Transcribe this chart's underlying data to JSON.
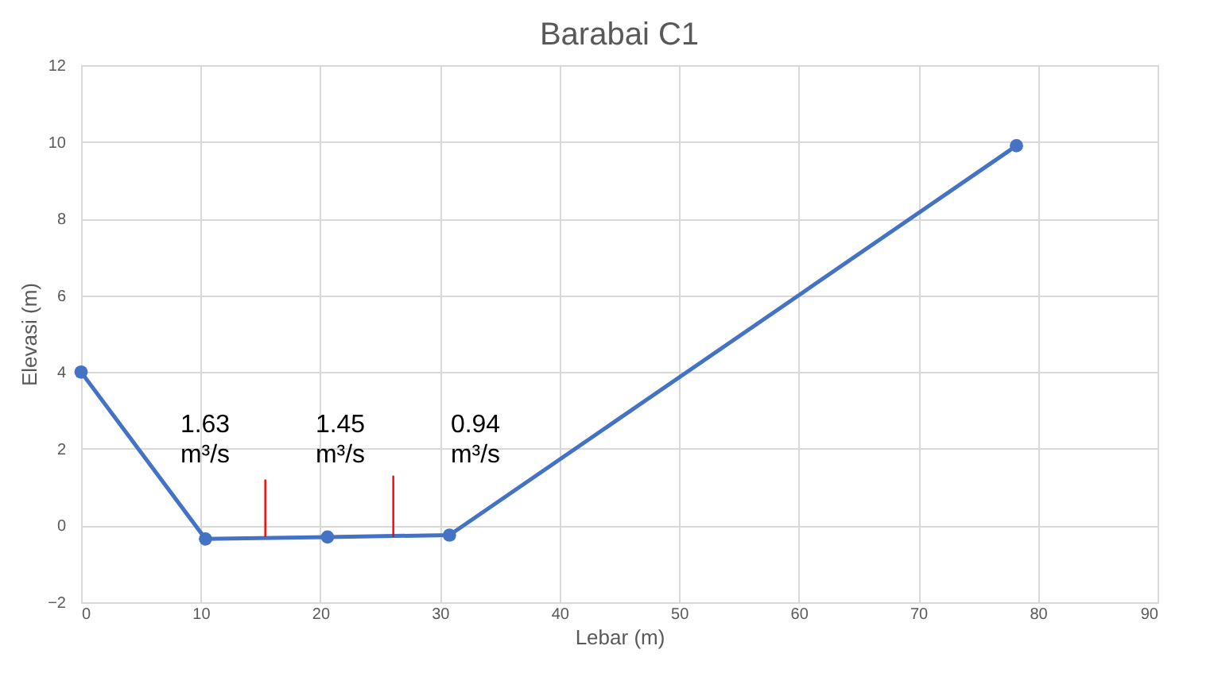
{
  "chart_data": {
    "type": "line",
    "title": "Barabai C1",
    "xlabel": "Lebar (m)",
    "ylabel": "Elevasi (m)",
    "xlim": [
      0,
      90
    ],
    "xticks": [
      0,
      10,
      20,
      30,
      40,
      50,
      60,
      70,
      80,
      90
    ],
    "ylim": [
      -2,
      12
    ],
    "yticks": [
      -2,
      0,
      2,
      4,
      6,
      8,
      10,
      12
    ],
    "grid": true,
    "series": [
      {
        "color": "#4472c4",
        "marker": "circle",
        "line_style": "solid",
        "x": [
          0,
          10.4,
          20.6,
          30.8,
          78.2
        ],
        "values": [
          4.0,
          -0.35,
          -0.3,
          -0.25,
          9.9
        ]
      },
      {
        "color": "#ff0000",
        "marker": "none",
        "line_style": "solid",
        "x": [
          15.4,
          15.4
        ],
        "values": [
          -0.3,
          1.2
        ]
      },
      {
        "color": "#ff0000",
        "marker": "none",
        "line_style": "solid",
        "x": [
          26.1,
          26.1
        ],
        "values": [
          -0.3,
          1.3
        ]
      }
    ],
    "annotations": [
      "1.63 m³/s",
      "1.45 m³/s",
      "0.94 m³/s"
    ]
  }
}
